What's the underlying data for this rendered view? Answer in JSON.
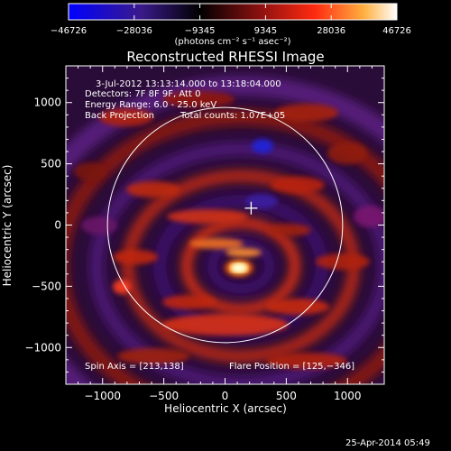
{
  "chart_data": {
    "type": "heatmap",
    "title": "Reconstructed RHESSI Image",
    "xlabel": "Heliocentric X (arcsec)",
    "ylabel": "Heliocentric Y (arcsec)",
    "xlim": [
      -1300,
      1300
    ],
    "ylim": [
      -1300,
      1300
    ],
    "xticks": [
      -1000,
      -500,
      0,
      500,
      1000
    ],
    "yticks": [
      -1000,
      -500,
      0,
      500,
      1000
    ],
    "xtick_labels": [
      "−1000",
      "−500",
      "0",
      "500",
      "1000"
    ],
    "ytick_labels": [
      "−1000",
      "−500",
      "0",
      "500",
      "1000"
    ],
    "colorbar": {
      "min": -46726,
      "max": 46726,
      "tick_labels": [
        "−46726",
        "−28036",
        "−9345",
        "9345",
        "28036",
        "46726"
      ],
      "tick_values": [
        -46726,
        -28036,
        -9345,
        9345,
        28036,
        46726
      ],
      "units_label": "(photons cm⁻² s⁻¹ asec⁻²)"
    },
    "annotations": {
      "time_range": "3-Jul-2012 13:13:14.000 to 13:18:04.000",
      "detectors": "Detectors: 7F 8F 9F, Att 0",
      "energy_range": "Energy Range: 6.0 - 25.0 keV",
      "method": "Back Projection",
      "total_counts": "Total counts: 1.07E+05",
      "spin_axis": "Spin Axis = [213,138]",
      "flare_position": "Flare Position = [125,−346]"
    },
    "solar_limb_radius_arcsec": 960,
    "marker_position": [
      213,
      138
    ],
    "brightest_source": [
      125,
      -346
    ]
  },
  "footer": {
    "timestamp": "25-Apr-2014 05:49"
  },
  "colors": {
    "background": "#000000",
    "foreground": "#ffffff",
    "colormap": [
      "#0000ff",
      "#3a1a8a",
      "#000000",
      "#7a1010",
      "#ff2a10",
      "#ffb040",
      "#ffffff"
    ]
  }
}
